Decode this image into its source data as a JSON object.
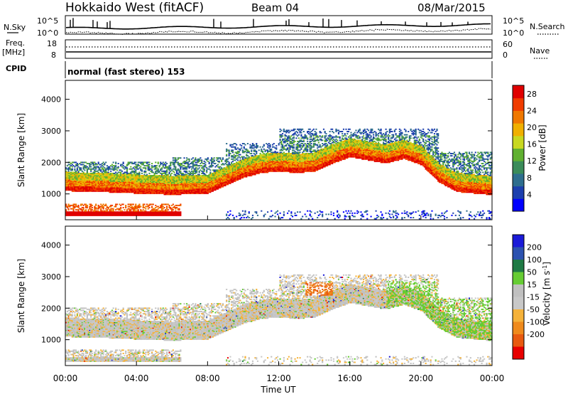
{
  "header": {
    "title": "Hokkaido West (fitACF)",
    "beam": "Beam 04",
    "date": "08/Mar/2015"
  },
  "strip_labels": {
    "nsky": "N.Sky",
    "nsky_ticks": [
      "10^5",
      "10^0"
    ],
    "nsearch": "N.Search",
    "nsearch_ticks": [
      "10^5",
      "10^0"
    ],
    "freq_line1": "Freq.",
    "freq_line2": "[MHz]",
    "freq_ticks": [
      "18",
      "8"
    ],
    "nave": "Nave",
    "nave_ticks": [
      "60",
      "0"
    ],
    "cpid": "CPID",
    "cpid_text": "normal (fast stereo) 153"
  },
  "colors": {
    "power_scale": [
      "#0000ff",
      "#1c3fae",
      "#2e6e8e",
      "#3b8c5a",
      "#60b030",
      "#c8d820",
      "#f0b000",
      "#f07800",
      "#f03c00",
      "#e00000"
    ],
    "velocity_scale": [
      "#1a1ad8",
      "#2c52b0",
      "#1f7a45",
      "#66cc33",
      "#c0c0c0",
      "#c8c8c8",
      "#f5b23a",
      "#ef8a1c",
      "#e85a10",
      "#e80000"
    ]
  },
  "chart_data": [
    {
      "type": "heatmap",
      "name": "power",
      "ylabel": "Slant Range [km]",
      "xlabel": "",
      "xlim": [
        0,
        24
      ],
      "ylim": [
        180,
        4600
      ],
      "yticks": [
        1000,
        2000,
        3000,
        4000
      ],
      "colorbar_label": "Power [dB]",
      "colorbar_range": [
        0,
        30
      ],
      "colorbar_ticks": [
        "4",
        "8",
        "12",
        "16",
        "20",
        "24",
        "28"
      ],
      "main_echo_lower_edge_km": [
        [
          0,
          1080
        ],
        [
          2,
          1050
        ],
        [
          4,
          1000
        ],
        [
          6,
          960
        ],
        [
          8,
          1000
        ],
        [
          9,
          1250
        ],
        [
          10,
          1500
        ],
        [
          11,
          1650
        ],
        [
          12,
          1700
        ],
        [
          13,
          1650
        ],
        [
          14,
          1700
        ],
        [
          15,
          1950
        ],
        [
          16,
          2150
        ],
        [
          17,
          2050
        ],
        [
          18,
          1950
        ],
        [
          19,
          2100
        ],
        [
          20,
          1900
        ],
        [
          21,
          1350
        ],
        [
          22,
          1050
        ],
        [
          23,
          1000
        ],
        [
          24,
          950
        ]
      ]
    },
    {
      "type": "heatmap",
      "name": "velocity",
      "ylabel": "Slant Range [km]",
      "xlabel": "Time UT",
      "xlim": [
        0,
        24
      ],
      "ylim": [
        180,
        4600
      ],
      "yticks": [
        1000,
        2000,
        3000,
        4000
      ],
      "xticks": [
        "00:00",
        "04:00",
        "08:00",
        "12:00",
        "16:00",
        "20:00",
        "00:00"
      ],
      "colorbar_label": "Velocity [m s-1]",
      "colorbar_ticks": [
        "200",
        "100",
        "50",
        "15",
        "-15",
        "-50",
        "-100",
        "-200"
      ]
    }
  ]
}
